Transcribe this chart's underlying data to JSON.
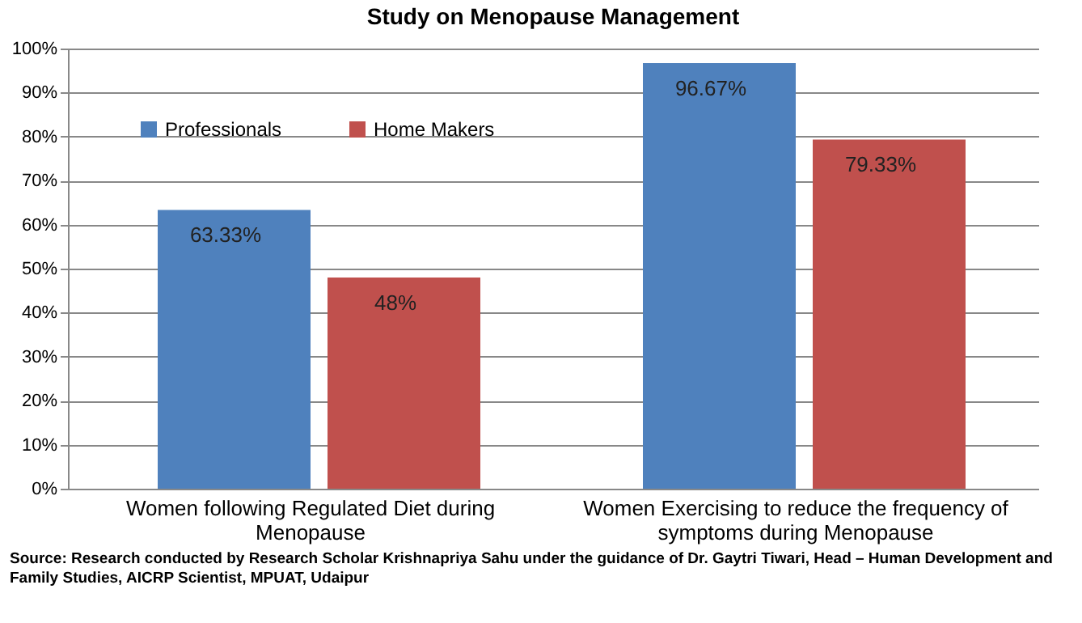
{
  "chart_data": {
    "type": "bar",
    "title": "Study on Menopause Management",
    "categories": [
      "Women following Regulated Diet during Menopause",
      "Women Exercising to reduce the frequency of symptoms during Menopause"
    ],
    "series": [
      {
        "name": "Professionals",
        "color": "#4f81bd",
        "values": [
          63.33,
          96.67
        ],
        "value_labels": [
          "63.33%",
          "96.67%"
        ]
      },
      {
        "name": "Home Makers",
        "color": "#c0504d",
        "values": [
          48,
          79.33
        ],
        "value_labels": [
          "48%",
          "79.33%"
        ]
      }
    ],
    "ylim": [
      0,
      100
    ],
    "yticks": [
      {
        "value": 0,
        "label": "0%"
      },
      {
        "value": 10,
        "label": "10%"
      },
      {
        "value": 20,
        "label": "20%"
      },
      {
        "value": 30,
        "label": "30%"
      },
      {
        "value": 40,
        "label": "40%"
      },
      {
        "value": 50,
        "label": "50%"
      },
      {
        "value": 60,
        "label": "60%"
      },
      {
        "value": 70,
        "label": "70%"
      },
      {
        "value": 80,
        "label": "80%"
      },
      {
        "value": 90,
        "label": "90%"
      },
      {
        "value": 100,
        "label": "100%"
      }
    ],
    "grid": "y",
    "legend": "top left",
    "annotations": [
      "Source: Research conducted by Research Scholar Krishnapriya Sahu under the guidance of Dr. Gaytri Tiwari, Head – Human Development and Family Studies, AICRP Scientist, MPUAT, Udaipur"
    ]
  }
}
